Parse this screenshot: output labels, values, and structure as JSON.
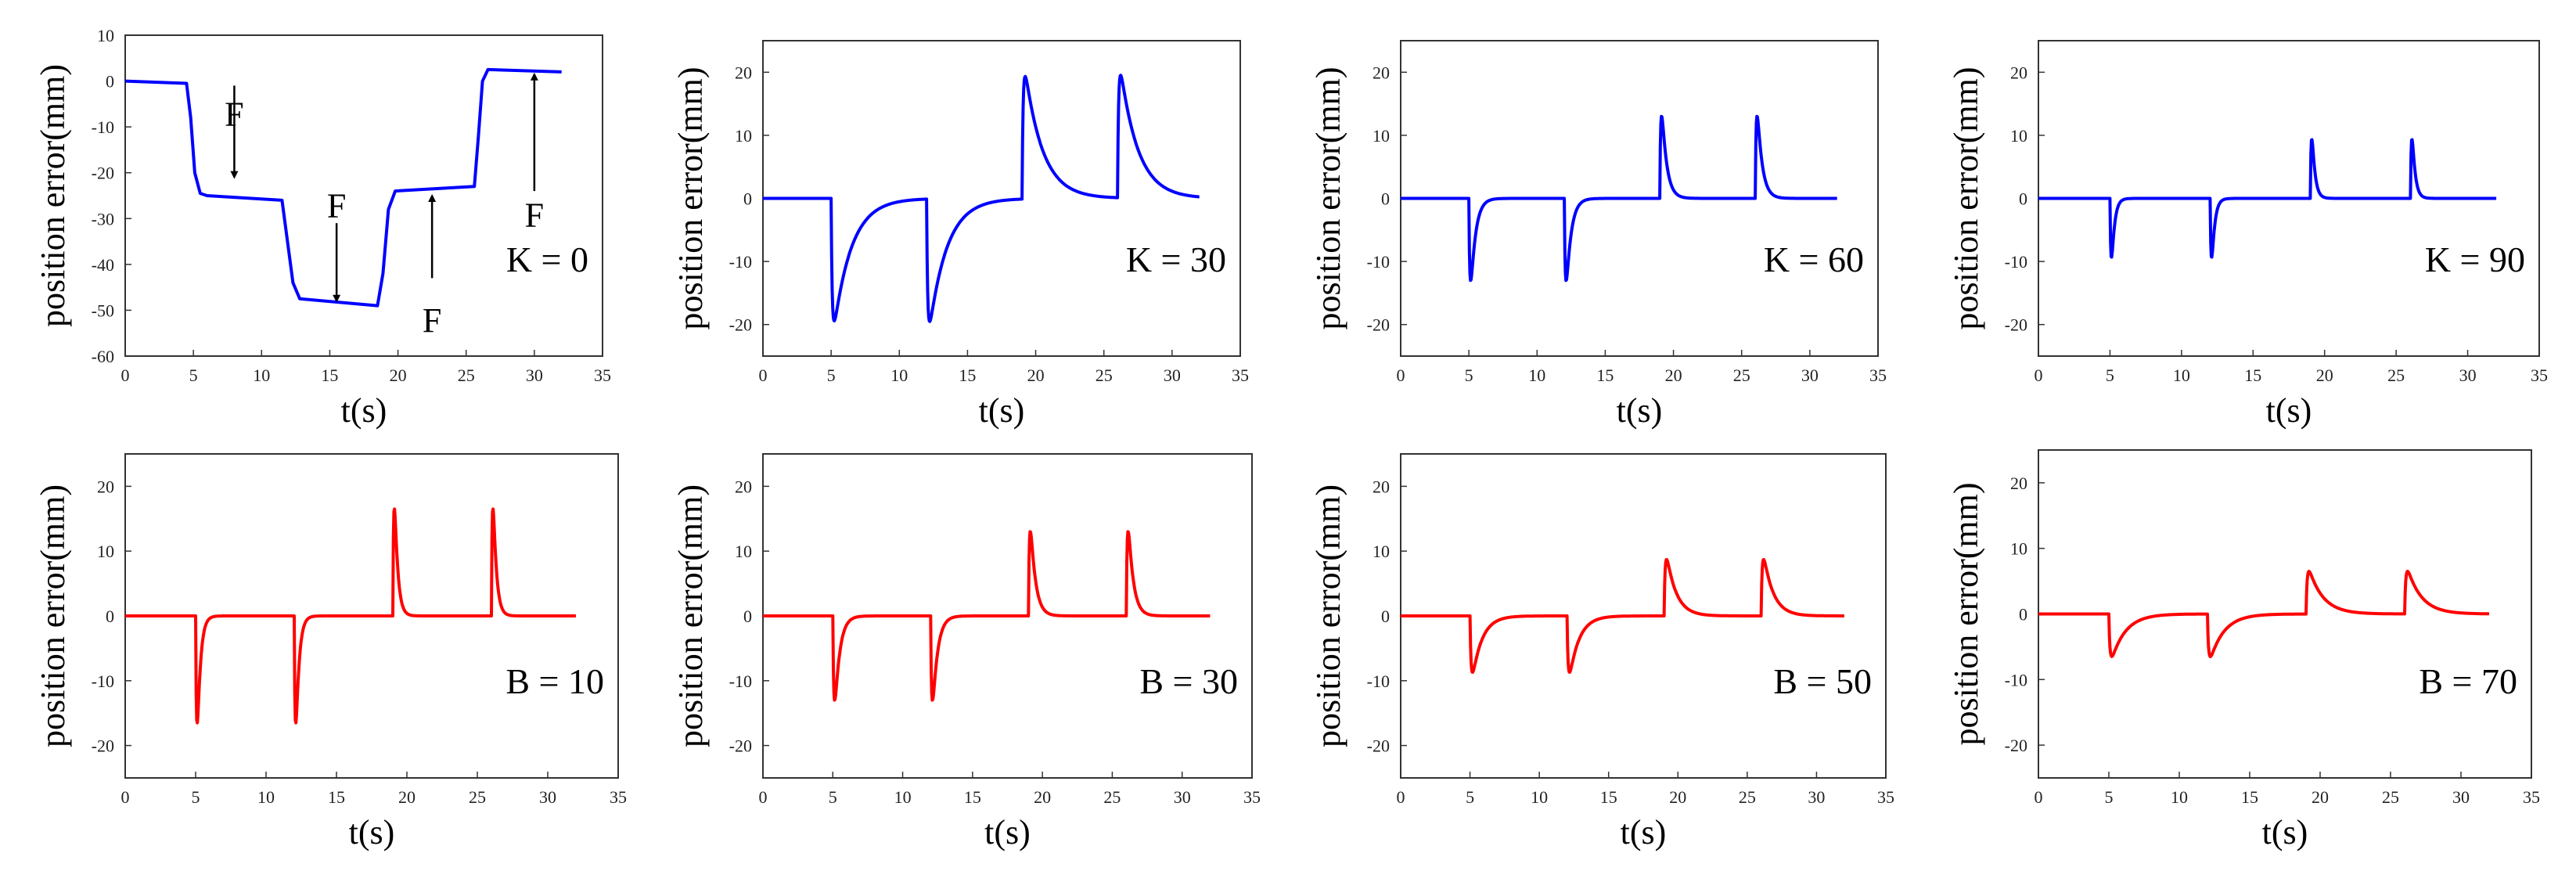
{
  "chart_data": [
    {
      "type": "line",
      "row": "top",
      "color": "#0000ff",
      "annotation": "K = 0",
      "xlabel": "t(s)",
      "ylabel": "position error(mm)",
      "xlim": [
        0,
        35
      ],
      "ylim": [
        -60,
        10
      ],
      "xticks": [
        0,
        5,
        10,
        15,
        20,
        25,
        30,
        35
      ],
      "yticks": [
        10,
        0,
        -10,
        -20,
        -30,
        -40,
        -50,
        -60
      ],
      "series": [
        {
          "name": "K = 0",
          "x": [
            0,
            4.5,
            4.8,
            5.1,
            5.5,
            6,
            11.5,
            11.9,
            12.3,
            12.8,
            18.5,
            18.9,
            19.3,
            19.8,
            25.6,
            25.9,
            26.2,
            26.6,
            32
          ],
          "y": [
            0,
            -0.5,
            -8,
            -20,
            -24.5,
            -25,
            -26,
            -35,
            -44,
            -47.5,
            -49,
            -42,
            -28,
            -24,
            -23,
            -12,
            0,
            2.5,
            2
          ]
        }
      ],
      "force_labels": [
        {
          "text": "F",
          "x": 8,
          "y": -7,
          "arrow_from": -1,
          "arrow_to": -21
        },
        {
          "text": "F",
          "x": 15.5,
          "y": -27,
          "arrow_from": -31,
          "arrow_to": -48
        },
        {
          "text": "F",
          "x": 22.5,
          "y": -52,
          "arrow_from": -43,
          "arrow_to": -25
        },
        {
          "text": "F",
          "x": 30,
          "y": -29,
          "arrow_from": -24,
          "arrow_to": 1.5
        }
      ]
    },
    {
      "type": "line",
      "row": "top",
      "color": "#0000ff",
      "annotation": "K = 30",
      "xlabel": "t(s)",
      "ylabel": "position error(mm)",
      "xlim": [
        0,
        35
      ],
      "ylim": [
        -25,
        25
      ],
      "xticks": [
        0,
        5,
        10,
        15,
        20,
        25,
        30,
        35
      ],
      "yticks": [
        20,
        10,
        0,
        -10,
        -20
      ],
      "series": [
        {
          "name": "K = 30",
          "peak": 19.5,
          "decay": 1.3
        }
      ]
    },
    {
      "type": "line",
      "row": "top",
      "color": "#0000ff",
      "annotation": "K = 60",
      "xlabel": "t(s)",
      "ylabel": "position error(mm)",
      "xlim": [
        0,
        35
      ],
      "ylim": [
        -25,
        25
      ],
      "xticks": [
        0,
        5,
        10,
        15,
        20,
        25,
        30,
        35
      ],
      "yticks": [
        20,
        10,
        0,
        -10,
        -20
      ],
      "series": [
        {
          "name": "K = 60",
          "peak": 13,
          "decay": 0.35
        }
      ]
    },
    {
      "type": "line",
      "row": "top",
      "color": "#0000ff",
      "annotation": "K = 90",
      "xlabel": "t(s)",
      "ylabel": "position error(mm)",
      "xlim": [
        0,
        35
      ],
      "ylim": [
        -25,
        25
      ],
      "xticks": [
        0,
        5,
        10,
        15,
        20,
        25,
        30,
        35
      ],
      "yticks": [
        20,
        10,
        0,
        -10,
        -20
      ],
      "series": [
        {
          "name": "K = 90",
          "peak": 9.3,
          "decay": 0.2
        }
      ]
    },
    {
      "type": "line",
      "row": "bottom",
      "color": "#ff0000",
      "annotation": "B = 10",
      "xlabel": "t(s)",
      "ylabel": "position error(mm)",
      "xlim": [
        0,
        35
      ],
      "ylim": [
        -25,
        25
      ],
      "xticks": [
        0,
        5,
        10,
        15,
        20,
        25,
        30,
        35
      ],
      "yticks": [
        20,
        10,
        0,
        -10,
        -20
      ],
      "series": [
        {
          "name": "B = 10",
          "peak": 16.5,
          "decay": 0.22
        }
      ]
    },
    {
      "type": "line",
      "row": "bottom",
      "color": "#ff0000",
      "annotation": "B = 30",
      "xlabel": "t(s)",
      "ylabel": "position error(mm)",
      "xlim": [
        0,
        35
      ],
      "ylim": [
        -25,
        25
      ],
      "xticks": [
        0,
        5,
        10,
        15,
        20,
        25,
        30,
        35
      ],
      "yticks": [
        20,
        10,
        0,
        -10,
        -20
      ],
      "series": [
        {
          "name": "B = 30",
          "peak": 13,
          "decay": 0.35
        }
      ]
    },
    {
      "type": "line",
      "row": "bottom",
      "color": "#ff0000",
      "annotation": "B = 50",
      "xlabel": "t(s)",
      "ylabel": "position error(mm)",
      "xlim": [
        0,
        35
      ],
      "ylim": [
        -25,
        25
      ],
      "xticks": [
        0,
        5,
        10,
        15,
        20,
        25,
        30,
        35
      ],
      "yticks": [
        20,
        10,
        0,
        -10,
        -20
      ],
      "series": [
        {
          "name": "B = 50",
          "peak": 8.7,
          "decay": 0.7
        }
      ]
    },
    {
      "type": "line",
      "row": "bottom",
      "color": "#ff0000",
      "annotation": "B = 70",
      "xlabel": "t(s)",
      "ylabel": "position error(mm)",
      "xlim": [
        0,
        35
      ],
      "ylim": [
        -25,
        25
      ],
      "xticks": [
        0,
        5,
        10,
        15,
        20,
        25,
        30,
        35
      ],
      "yticks": [
        20,
        10,
        0,
        -10,
        -20
      ],
      "series": [
        {
          "name": "B = 70",
          "peak": 6.5,
          "decay": 1.0
        }
      ]
    }
  ],
  "force_times_s": [
    5,
    12,
    19,
    26
  ],
  "force_signs": [
    -1,
    -1,
    1,
    1
  ],
  "time_end_s": 32
}
